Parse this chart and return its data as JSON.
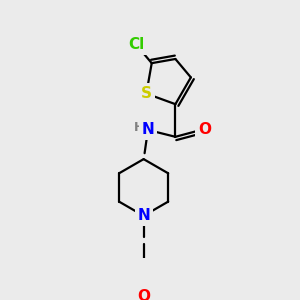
{
  "background_color": "#ebebeb",
  "atom_colors": {
    "C": "#000000",
    "N": "#0000ff",
    "O": "#ff0000",
    "S": "#cccc00",
    "Cl": "#33cc00",
    "H": "#808080"
  },
  "bond_color": "#000000",
  "bond_width": 1.6,
  "font_size": 10,
  "figsize": [
    3.0,
    3.0
  ],
  "dpi": 100
}
